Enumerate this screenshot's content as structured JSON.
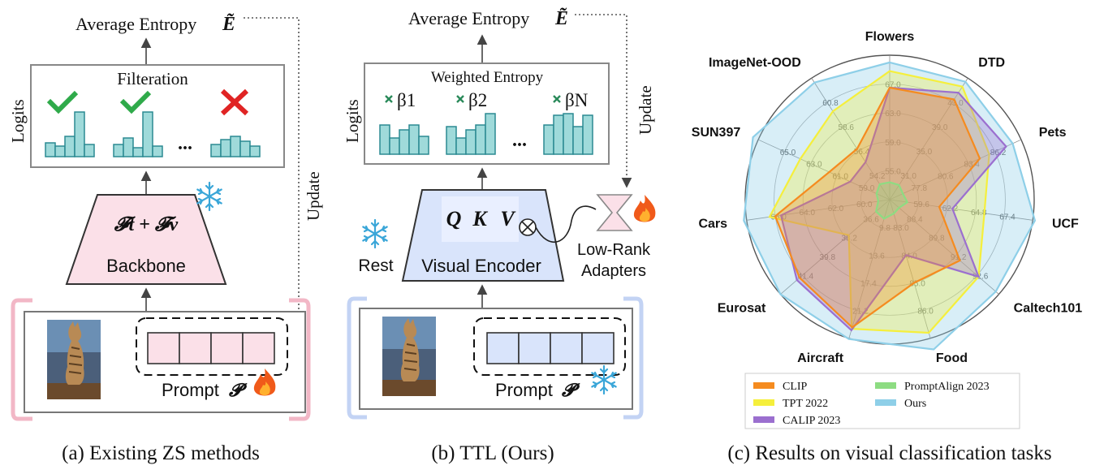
{
  "panel_a": {
    "title": "Average Entropy",
    "title_symbol": "Ẽ",
    "box_label": "Filteration",
    "logits": "Logits",
    "dots": "...",
    "backbone_formula": "𝓕t + 𝓕v",
    "backbone": "Backbone",
    "update": "Update",
    "prompt": "Prompt",
    "prompt_symbol": "𝓟",
    "caption": "(a) Existing ZS methods"
  },
  "panel_b": {
    "title": "Average Entropy",
    "title_symbol": "Ẽ",
    "box_label": "Weighted Entropy",
    "logits": "Logits",
    "betas": [
      "β1",
      "β2",
      "βN"
    ],
    "dots": "...",
    "qkv": [
      "Q",
      "K",
      "V"
    ],
    "encoder": "Visual Encoder",
    "rest": "Rest",
    "update": "Update",
    "adapters_line1": "Low-Rank",
    "adapters_line2": "Adapters",
    "prompt": "Prompt",
    "prompt_symbol": "𝓟",
    "caption": "(b) TTL (Ours)"
  },
  "panel_c": {
    "caption": "(c) Results on visual classification tasks"
  },
  "chart_data": {
    "type": "radar",
    "axes": [
      "Flowers",
      "DTD",
      "Pets",
      "UCF",
      "Caltech101",
      "Food",
      "Aircraft",
      "Eurosat",
      "Cars",
      "SUN397",
      "ImageNet-OOD"
    ],
    "axis_ticks": [
      [
        "55.0",
        "59.0",
        "63.0",
        "67.0"
      ],
      [
        "31.0",
        "35.0",
        "39.0",
        "43.0"
      ],
      [
        "77.8",
        "80.6",
        "83.4",
        "86.2"
      ],
      [
        "59.6",
        "62.2",
        "64.8",
        "67.4"
      ],
      [
        "88.4",
        "89.8",
        "91.2",
        "92.6"
      ],
      [
        "83.0",
        "84.0",
        "85.0",
        "86.0"
      ],
      [
        "9.8",
        "13.6",
        "17.4",
        "21.2"
      ],
      [
        "36.6",
        "38.2",
        "39.8",
        "41.4"
      ],
      [
        "60.0",
        "62.0",
        "64.0",
        "66.0"
      ],
      [
        "59.0",
        "61.0",
        "63.0",
        "65.0"
      ],
      [
        "54.2",
        "56.4",
        "58.6",
        "60.8"
      ]
    ],
    "series": [
      {
        "name": "CLIP",
        "color": "#f58b1f",
        "values": [
          66.5,
          43.5,
          84.6,
          61.5,
          91.5,
          85.0,
          23.5,
          41.6,
          66.0,
          61.6,
          56.6
        ]
      },
      {
        "name": "TPT 2022",
        "color": "#f5ef3c",
        "values": [
          68.8,
          45.6,
          85.6,
          65.6,
          92.7,
          86.8,
          23.7,
          38.0,
          66.4,
          63.8,
          60.0
        ]
      },
      {
        "name": "CALIP 2023",
        "color": "#9b6fcf",
        "values": [
          66.5,
          44.6,
          87.4,
          62.7,
          92.7,
          84.0,
          23.9,
          41.8,
          65.6,
          60.0,
          55.4
        ]
      },
      {
        "name": "PromptAlign 2023",
        "color": "#8ddc82",
        "values": [
          53.4,
          29.4,
          76.4,
          58.6,
          87.6,
          82.5,
          8.6,
          36.0,
          58.8,
          58.0,
          53.4
        ]
      },
      {
        "name": "Ours",
        "color": "#8ecfe8",
        "values": [
          70.0,
          46.4,
          88.1,
          70.2,
          93.8,
          87.4,
          25.1,
          43.0,
          68.2,
          67.4,
          62.6
        ]
      }
    ]
  }
}
